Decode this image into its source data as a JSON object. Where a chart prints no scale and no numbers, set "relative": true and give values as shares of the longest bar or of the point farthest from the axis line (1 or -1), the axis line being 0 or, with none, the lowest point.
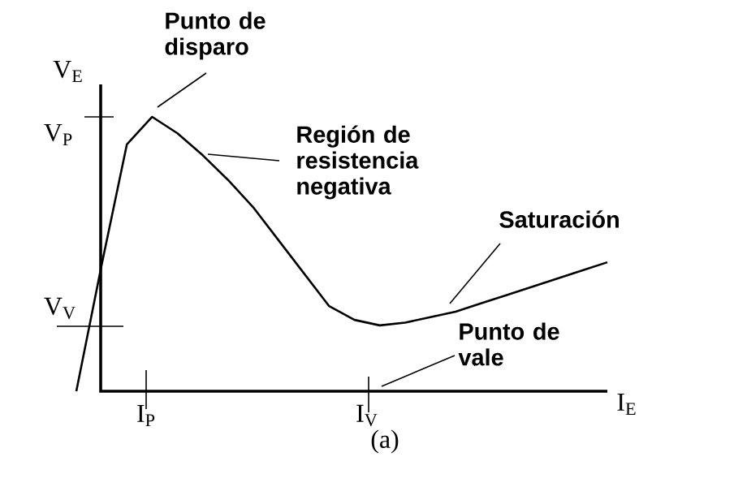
{
  "chart_data": {
    "type": "line",
    "relative": true,
    "xlabel": "I$_{E}$",
    "ylabel": "V$_{E}$",
    "color": "#000000",
    "categories": [
      null,
      null,
      null,
      null,
      null,
      null,
      null,
      null,
      null,
      null,
      null,
      null,
      null,
      null,
      null,
      null,
      null,
      null,
      null,
      null,
      null,
      null
    ],
    "values": [
      0,
      0.46,
      0.9,
      1,
      0.94,
      0.86,
      0.77,
      0.67,
      0.55,
      0.43,
      0.31,
      0.26,
      0.24,
      0.25,
      0.27,
      0.29,
      0.32,
      0.35,
      0.38,
      0.41,
      0.44,
      0.47
    ],
    "annotations": [
      "Punto de disparo",
      "Región de resistencia negativa",
      "Saturación",
      "Punto de vale",
      "I$_{P}$",
      "I$_{V}$",
      "V$_{P}$",
      "V$_{V}$",
      "(a)"
    ]
  }
}
